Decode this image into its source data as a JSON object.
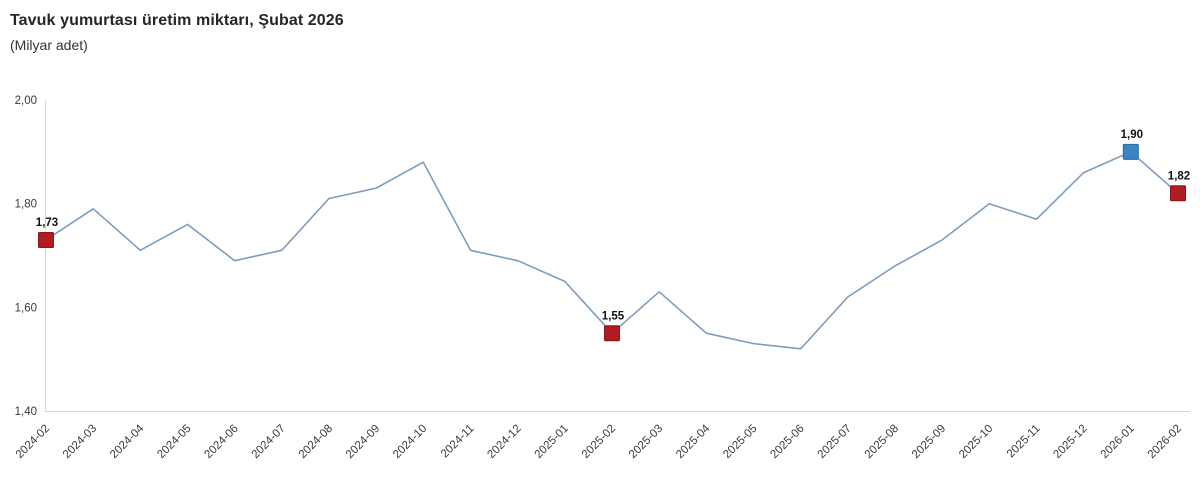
{
  "header": {
    "title": "Tavuk yumurtası üretim miktarı, Şubat 2026",
    "subtitle": "(Milyar adet)"
  },
  "chart_data": {
    "type": "line",
    "title": "Tavuk yumurtası üretim miktarı, Şubat 2026",
    "subtitle": "(Milyar adet)",
    "x": [
      "2024-02",
      "2024-03",
      "2024-04",
      "2024-05",
      "2024-06",
      "2024-07",
      "2024-08",
      "2024-09",
      "2024-10",
      "2024-11",
      "2024-12",
      "2025-01",
      "2025-02",
      "2025-03",
      "2025-04",
      "2025-05",
      "2025-06",
      "2025-07",
      "2025-08",
      "2025-09",
      "2025-10",
      "2025-11",
      "2025-12",
      "2026-01",
      "2026-02"
    ],
    "values": [
      1.73,
      1.79,
      1.71,
      1.76,
      1.69,
      1.71,
      1.81,
      1.83,
      1.88,
      1.71,
      1.69,
      1.65,
      1.55,
      1.63,
      1.55,
      1.53,
      1.52,
      1.62,
      1.68,
      1.73,
      1.8,
      1.77,
      1.86,
      1.9,
      1.82
    ],
    "ylim": [
      1.4,
      2.0
    ],
    "yticks": [
      {
        "value": 1.4,
        "label": "1,40"
      },
      {
        "value": 1.6,
        "label": "1,60"
      },
      {
        "value": 1.8,
        "label": "1,80"
      },
      {
        "value": 2.0,
        "label": "2,00"
      }
    ],
    "grid": false,
    "legend": "none",
    "xlabel": "",
    "ylabel": "",
    "annotated_points": [
      {
        "x": "2024-02",
        "index": 0,
        "value": 1.73,
        "label": "1,73",
        "fill": "#b01c22",
        "border": "#8e1419"
      },
      {
        "x": "2025-02",
        "index": 12,
        "value": 1.55,
        "label": "1,55",
        "fill": "#b01c22",
        "border": "#8e1419"
      },
      {
        "x": "2026-01",
        "index": 23,
        "value": 1.9,
        "label": "1,90",
        "fill": "#3c83c4",
        "border": "#2d6aa3"
      },
      {
        "x": "2026-02",
        "index": 24,
        "value": 1.82,
        "label": "1,82",
        "fill": "#b01c22",
        "border": "#8e1419"
      }
    ],
    "colors": {
      "line": "#7e9cbd",
      "axis": "#d6d6d6",
      "tick_label": "#3a3a3a",
      "data_label": "#111111"
    }
  }
}
